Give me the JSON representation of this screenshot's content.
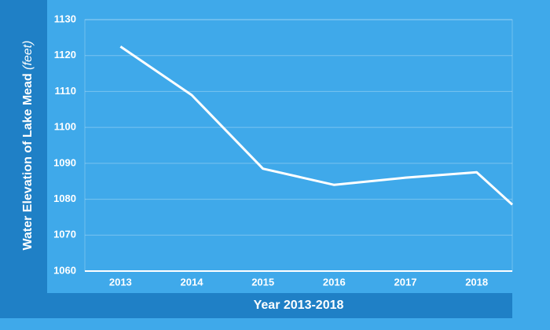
{
  "chart_data": {
    "type": "line",
    "x_label": "Year 2013-2018",
    "y_label": "Water Elevation of Lake Mead",
    "y_label_unit": "(feet)",
    "x": [
      2013,
      2014,
      2015,
      2016,
      2017,
      2018,
      2018.5
    ],
    "values": [
      1122.5,
      1109,
      1088.5,
      1084,
      1086,
      1087.5,
      1078.5
    ],
    "color": "#ffffff",
    "xlim": [
      2012.5,
      2018.5
    ],
    "xticks": [
      2013,
      2014,
      2015,
      2016,
      2017,
      2018
    ],
    "ylim": [
      1060,
      1130
    ],
    "yticks": [
      1060,
      1070,
      1080,
      1090,
      1100,
      1110,
      1120,
      1130
    ],
    "grid": true
  }
}
